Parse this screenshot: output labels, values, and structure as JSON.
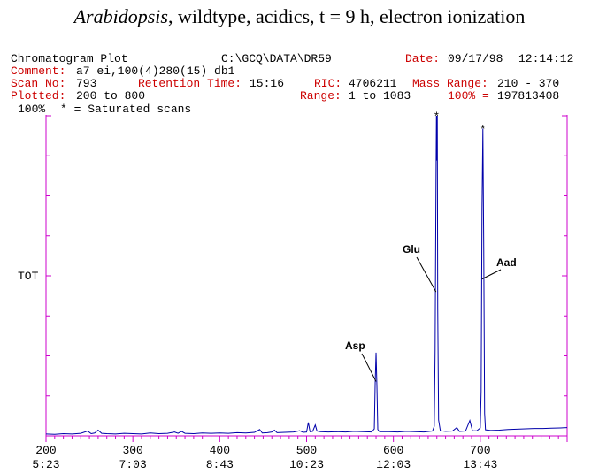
{
  "title": {
    "italic": "Arabidopsis",
    "rest": ", wildtype, acidics, t = 9 h, electron ionization"
  },
  "header": {
    "plot_name": "Chromatogram Plot",
    "path": "C:\\GCQ\\DATA\\DR59",
    "date_label": "Date:",
    "date_value": "09/17/98",
    "time_value": "12:14:12",
    "comment_label": "Comment:",
    "comment_value": "a7 ei,100(4)280(15) db1",
    "scan_label": "Scan No:",
    "scan_value": "793",
    "rt_label": "Retention Time:",
    "rt_value": "15:16",
    "ric_label": "RIC:",
    "ric_value": "4706211",
    "mass_label": "Mass Range:",
    "mass_value": "210 - 370",
    "plotted_label": "Plotted:",
    "plotted_value": "200 to 800",
    "range_label": "Range:",
    "range_value": "1 to 1083",
    "hundred_label": "100% =",
    "hundred_value": "197813408",
    "pct_label": "100%",
    "saturated_note": "* = Saturated scans",
    "tot_label": "TOT"
  },
  "chart_data": {
    "type": "line",
    "x_axis": {
      "range": [
        200,
        800
      ],
      "ticks": [
        {
          "scan": 200,
          "label": "200",
          "time": "5:23"
        },
        {
          "scan": 300,
          "label": "300",
          "time": "7:03"
        },
        {
          "scan": 400,
          "label": "400",
          "time": "8:43"
        },
        {
          "scan": 500,
          "label": "500",
          "time": "10:23"
        },
        {
          "scan": 600,
          "label": "600",
          "time": "12:03"
        },
        {
          "scan": 700,
          "label": "700",
          "time": "13:43"
        }
      ]
    },
    "ylim": [
      0,
      100
    ],
    "colors": {
      "trace": "#0000aa",
      "axis": "#cc00cc",
      "header_red": "#cc0000"
    },
    "series": [
      {
        "points": [
          [
            200,
            0.6
          ],
          [
            210,
            0.5
          ],
          [
            220,
            0.7
          ],
          [
            230,
            0.6
          ],
          [
            240,
            0.8
          ],
          [
            248,
            1.5
          ],
          [
            252,
            0.7
          ],
          [
            256,
            0.9
          ],
          [
            260,
            1.8
          ],
          [
            264,
            0.8
          ],
          [
            270,
            0.7
          ],
          [
            280,
            0.6
          ],
          [
            290,
            0.8
          ],
          [
            300,
            0.7
          ],
          [
            310,
            0.6
          ],
          [
            320,
            0.9
          ],
          [
            330,
            0.7
          ],
          [
            340,
            0.8
          ],
          [
            348,
            1.2
          ],
          [
            352,
            0.8
          ],
          [
            356,
            1.4
          ],
          [
            360,
            0.8
          ],
          [
            370,
            0.7
          ],
          [
            380,
            0.9
          ],
          [
            390,
            0.8
          ],
          [
            400,
            0.9
          ],
          [
            410,
            0.8
          ],
          [
            420,
            1.0
          ],
          [
            430,
            0.9
          ],
          [
            440,
            1.1
          ],
          [
            446,
            2.0
          ],
          [
            449,
            0.9
          ],
          [
            455,
            1.0
          ],
          [
            460,
            1.2
          ],
          [
            463,
            1.8
          ],
          [
            466,
            1.0
          ],
          [
            475,
            1.1
          ],
          [
            485,
            1.2
          ],
          [
            492,
            1.6
          ],
          [
            496,
            1.1
          ],
          [
            500,
            1.2
          ],
          [
            502,
            4.2
          ],
          [
            504,
            1.3
          ],
          [
            507,
            1.4
          ],
          [
            510,
            3.4
          ],
          [
            512,
            1.5
          ],
          [
            516,
            1.3
          ],
          [
            525,
            1.2
          ],
          [
            535,
            1.3
          ],
          [
            545,
            1.2
          ],
          [
            555,
            1.4
          ],
          [
            565,
            1.3
          ],
          [
            575,
            1.2
          ],
          [
            578,
            2.2
          ],
          [
            579,
            16.5
          ],
          [
            580,
            26.0
          ],
          [
            581,
            15.5
          ],
          [
            582,
            2.0
          ],
          [
            584,
            1.3
          ],
          [
            595,
            1.3
          ],
          [
            605,
            1.2
          ],
          [
            615,
            1.4
          ],
          [
            625,
            1.3
          ],
          [
            635,
            1.2
          ],
          [
            645,
            1.5
          ],
          [
            647,
            3.0
          ],
          [
            648,
            27.0
          ],
          [
            649,
            79.0
          ],
          [
            649.5,
            100
          ],
          [
            650,
            86.0
          ],
          [
            650.5,
            100
          ],
          [
            651,
            40.0
          ],
          [
            652,
            5.0
          ],
          [
            654,
            1.6
          ],
          [
            660,
            1.4
          ],
          [
            668,
            1.5
          ],
          [
            673,
            2.6
          ],
          [
            676,
            1.4
          ],
          [
            683,
            1.5
          ],
          [
            688,
            4.8
          ],
          [
            691,
            1.6
          ],
          [
            696,
            1.6
          ],
          [
            700,
            2.5
          ],
          [
            701,
            14.0
          ],
          [
            702,
            71.0
          ],
          [
            703,
            96.0
          ],
          [
            704,
            58.0
          ],
          [
            705,
            7.0
          ],
          [
            706,
            1.9
          ],
          [
            712,
            1.7
          ],
          [
            722,
            1.8
          ],
          [
            732,
            2.0
          ],
          [
            742,
            2.1
          ],
          [
            752,
            2.2
          ],
          [
            762,
            2.3
          ],
          [
            772,
            2.3
          ],
          [
            782,
            2.4
          ],
          [
            792,
            2.5
          ],
          [
            800,
            2.6
          ]
        ]
      }
    ],
    "saturated_marks": [
      {
        "scan": 649.7,
        "y": 100,
        "symbol": "*"
      },
      {
        "scan": 703,
        "y": 96,
        "symbol": "*"
      }
    ],
    "annotations": [
      {
        "label": "Asp",
        "scan": 580,
        "y": 17
      },
      {
        "label": "Glu",
        "scan": 649,
        "y": 45
      },
      {
        "label": "Aad",
        "scan": 702,
        "y": 49
      }
    ]
  }
}
